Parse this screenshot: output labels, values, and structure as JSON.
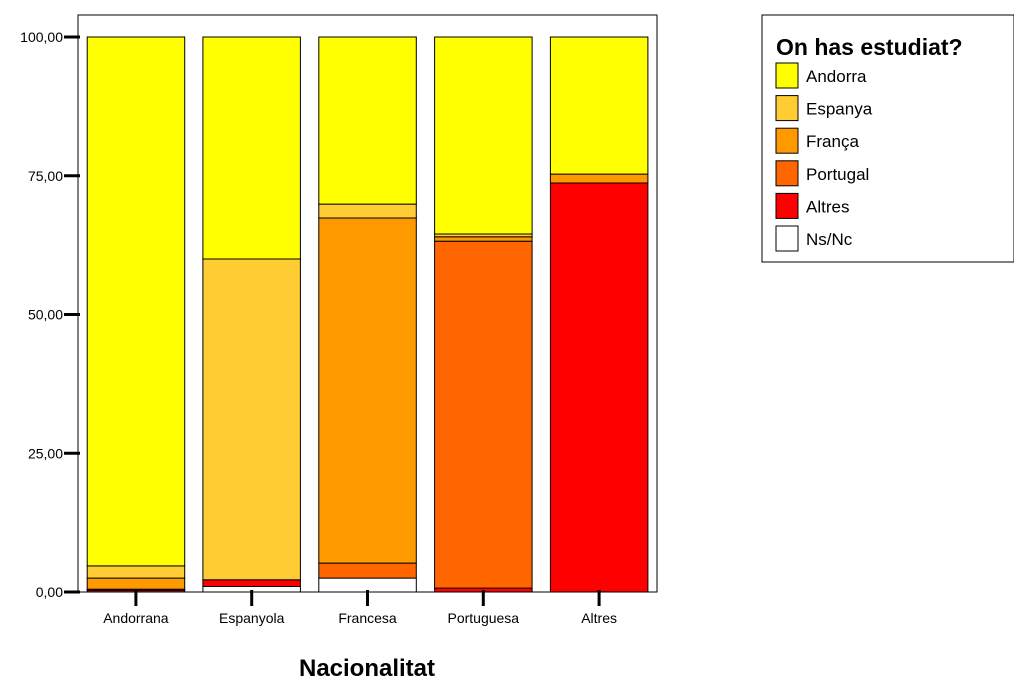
{
  "chart_data": {
    "type": "bar",
    "stacked": true,
    "xlabel": "Nacionalitat",
    "ylabel": "",
    "ylim": [
      0,
      100
    ],
    "yticks": [
      0,
      25,
      50,
      75,
      100
    ],
    "ytick_labels": [
      "0,00",
      "25,00",
      "50,00",
      "75,00",
      "100,00"
    ],
    "categories": [
      "Andorrana",
      "Espanyola",
      "Francesa",
      "Portuguesa",
      "Altres"
    ],
    "legend_title": "On has estudiat?",
    "legend_position": "top-right",
    "series": [
      {
        "name": "Ns/Nc",
        "color": "#ffffff",
        "values": [
          0.0,
          1.0,
          2.5,
          0.0,
          0.0
        ]
      },
      {
        "name": "Altres",
        "color": "#ff0000",
        "values": [
          0.3,
          1.2,
          0.0,
          0.7,
          73.7
        ]
      },
      {
        "name": "Portugal",
        "color": "#ff6600",
        "values": [
          0.2,
          0.0,
          2.7,
          62.5,
          0.0
        ]
      },
      {
        "name": "França",
        "color": "#ff9900",
        "values": [
          2.0,
          0.0,
          62.2,
          0.8,
          1.6
        ]
      },
      {
        "name": "Espanya",
        "color": "#ffcc33",
        "values": [
          2.2,
          57.8,
          2.5,
          0.5,
          0.0
        ]
      },
      {
        "name": "Andorra",
        "color": "#ffff00",
        "values": [
          95.3,
          40.0,
          30.1,
          35.5,
          24.7
        ]
      }
    ],
    "legend_order": [
      "Andorra",
      "Espanya",
      "França",
      "Portugal",
      "Altres",
      "Ns/Nc"
    ]
  }
}
